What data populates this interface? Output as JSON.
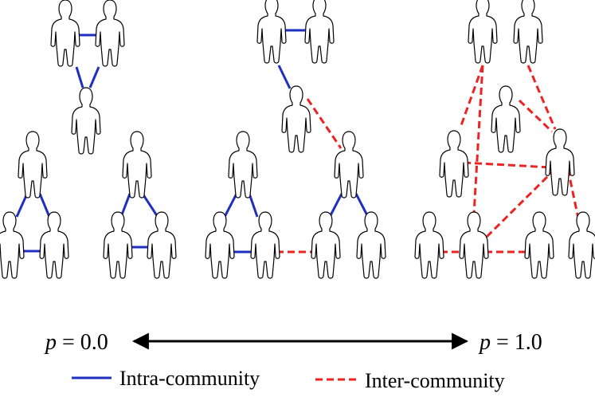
{
  "scale": {
    "left_label": {
      "var": "p",
      "rest": " = 0.0"
    },
    "right_label": {
      "var": "p",
      "rest": " = 1.0"
    }
  },
  "legend": {
    "intra": {
      "label": "Intra-community",
      "color": "#1f2fbf",
      "style": "solid"
    },
    "inter": {
      "label": "Inter-community",
      "color": "#ee2222",
      "style": "dashed"
    }
  },
  "panels": [
    {
      "p": "0.0",
      "people": 9,
      "intra_links": 9,
      "inter_links": 0
    },
    {
      "p": "intermediate",
      "people": 9,
      "intra_links": 7,
      "inter_links": 2
    },
    {
      "p": "1.0",
      "people": 9,
      "intra_links": 0,
      "inter_links": 9
    }
  ]
}
